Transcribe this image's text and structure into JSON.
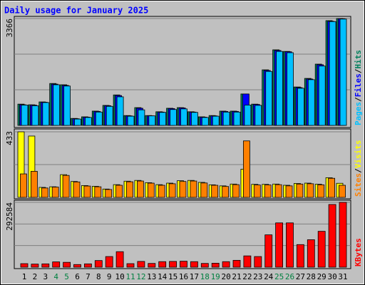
{
  "chart_data": [
    {
      "type": "bar",
      "title": "Daily usage for January 2025",
      "ylim": [
        0,
        3366
      ],
      "yticks": [
        3366
      ],
      "grid_divisions": 3,
      "legend_separator": "/",
      "series": [
        {
          "name": "Hits",
          "color": "#00805c",
          "values": [
            670,
            650,
            740,
            1320,
            1280,
            220,
            270,
            450,
            630,
            960,
            310,
            560,
            310,
            430,
            540,
            560,
            430,
            270,
            310,
            450,
            450,
            990,
            670,
            1750,
            2380,
            2330,
            1210,
            1480,
            1930,
            3300,
            3366
          ]
        },
        {
          "name": "Files",
          "color": "#0000ff",
          "values": [
            650,
            640,
            730,
            1300,
            1260,
            210,
            260,
            440,
            620,
            940,
            300,
            540,
            300,
            420,
            530,
            550,
            420,
            260,
            300,
            440,
            440,
            990,
            660,
            1730,
            2360,
            2320,
            1190,
            1460,
            1910,
            3280,
            3360
          ]
        },
        {
          "name": "Pages",
          "color": "#00c0ff",
          "values": [
            640,
            620,
            720,
            1280,
            1240,
            200,
            250,
            420,
            600,
            900,
            290,
            490,
            300,
            410,
            500,
            520,
            410,
            250,
            290,
            420,
            420,
            640,
            630,
            1700,
            2330,
            2290,
            1170,
            1440,
            1870,
            3270,
            3350
          ]
        }
      ]
    },
    {
      "type": "bar",
      "ylim": [
        0,
        433
      ],
      "yticks": [
        433
      ],
      "grid_divisions": 2,
      "legend_separator": "/",
      "series": [
        {
          "name": "Visits",
          "color": "#ffff00",
          "values": [
            433,
            405,
            66,
            70,
            150,
            105,
            78,
            73,
            55,
            84,
            107,
            112,
            97,
            84,
            94,
            110,
            112,
            99,
            83,
            76,
            88,
            186,
            86,
            86,
            88,
            80,
            92,
            94,
            87,
            130,
            93
          ]
        },
        {
          "name": "Sites",
          "color": "#ff8000",
          "values": [
            155,
            172,
            62,
            68,
            145,
            102,
            75,
            70,
            52,
            80,
            103,
            108,
            94,
            80,
            90,
            105,
            108,
            95,
            80,
            72,
            84,
            373,
            82,
            82,
            84,
            76,
            88,
            90,
            83,
            126,
            80
          ]
        }
      ]
    },
    {
      "type": "bar",
      "ylim": [
        0,
        292584
      ],
      "yticks": [
        292584
      ],
      "grid_divisions": 3,
      "categories": [
        "1",
        "2",
        "3",
        "4",
        "5",
        "6",
        "7",
        "8",
        "9",
        "10",
        "11",
        "12",
        "13",
        "14",
        "15",
        "16",
        "17",
        "18",
        "19",
        "20",
        "21",
        "22",
        "23",
        "24",
        "25",
        "26",
        "27",
        "28",
        "29",
        "30",
        "31"
      ],
      "category_colors": [
        "#000000",
        "#000000",
        "#000000",
        "#008040",
        "#008040",
        "#000000",
        "#000000",
        "#000000",
        "#000000",
        "#000000",
        "#008040",
        "#008040",
        "#000000",
        "#000000",
        "#000000",
        "#000000",
        "#000000",
        "#008040",
        "#008040",
        "#000000",
        "#000000",
        "#000000",
        "#000000",
        "#000000",
        "#008040",
        "#008040",
        "#000000",
        "#000000",
        "#000000",
        "#000000",
        "#000000"
      ],
      "series": [
        {
          "name": "KBytes",
          "color": "#ff0000",
          "values": [
            16000,
            14000,
            15000,
            24000,
            22000,
            12000,
            15000,
            30000,
            48000,
            70000,
            16000,
            26000,
            17000,
            25000,
            26000,
            27000,
            25000,
            17000,
            18000,
            25000,
            31000,
            51000,
            48000,
            146000,
            200000,
            200000,
            102000,
            124000,
            162000,
            283000,
            292584
          ]
        }
      ]
    }
  ]
}
